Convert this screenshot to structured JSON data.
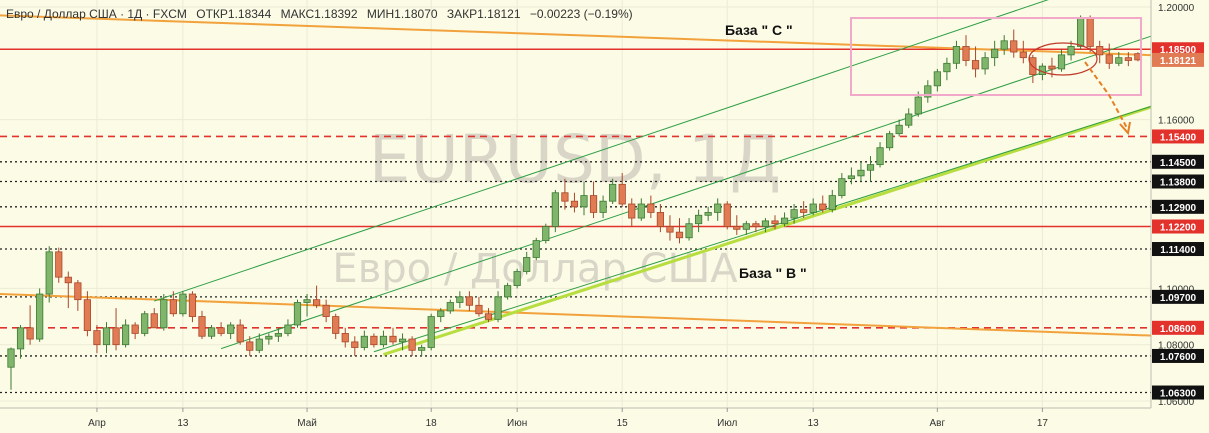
{
  "header": {
    "symbol": "Евро / Доллар США · 1Д · FXCM",
    "open": "ОТКР1.18344",
    "high": "МАКС1.18392",
    "low": "МИН1.18070",
    "close": "ЗАКР1.18121",
    "change": "−0.00223 (−0.19%)"
  },
  "watermark": {
    "ticker": "EURUSD, 1Д",
    "name": "Евро / Доллар США"
  },
  "annotations": {
    "base_c": "База  \" С \"",
    "base_b": "База  \" В \""
  },
  "colors": {
    "background": "#fbfbe6",
    "bull": "#7fb66b",
    "bear": "#e07b53",
    "red_level": "#e3312c",
    "orange_line": "#f2a23c",
    "lime_line": "#b7dd3f",
    "channel": "#2e9e45",
    "box": "#f2a9c9",
    "price_tag_bg": "#111111",
    "red_tag_bg": "#e3312c"
  },
  "chart_data": {
    "type": "candlestick",
    "title": "Евро / Доллар США · 1Д · FXCM",
    "ylim": [
      1.0575,
      1.2025
    ],
    "y_ticks": [
      "1.20000",
      "1.16000",
      "1.10000",
      "1.08000",
      "1.06000"
    ],
    "x_labels": [
      "Апр",
      "13",
      "Май",
      "18",
      "Июн",
      "15",
      "Июл",
      "13",
      "Авг",
      "17"
    ],
    "x_label_days": [
      9,
      18,
      31,
      44,
      53,
      64,
      75,
      84,
      97,
      108
    ],
    "levels": [
      {
        "price": 1.185,
        "label": "1.18500",
        "style": "solid-red"
      },
      {
        "price": 1.154,
        "label": "1.15400",
        "style": "dashed-red"
      },
      {
        "price": 1.145,
        "label": "1.14500",
        "style": "dotted"
      },
      {
        "price": 1.138,
        "label": "1.13800",
        "style": "dotted"
      },
      {
        "price": 1.129,
        "label": "1.12900",
        "style": "dotted"
      },
      {
        "price": 1.122,
        "label": "1.12200",
        "style": "solid-red"
      },
      {
        "price": 1.114,
        "label": "1.11400",
        "style": "dotted"
      },
      {
        "price": 1.097,
        "label": "1.09700",
        "style": "dotted"
      },
      {
        "price": 1.086,
        "label": "1.08600",
        "style": "dashed-red"
      },
      {
        "price": 1.076,
        "label": "1.07600",
        "style": "dotted"
      },
      {
        "price": 1.063,
        "label": "1.06300",
        "style": "dotted"
      }
    ],
    "current_price": {
      "price": 1.18121,
      "label": "1.18121"
    },
    "trendlines": [
      {
        "name": "orange-upper",
        "color": "orange",
        "points": [
          [
            -5,
            1.1975
          ],
          [
            140,
            1.1805
          ]
        ]
      },
      {
        "name": "orange-lower",
        "color": "orange",
        "points": [
          [
            -5,
            1.0985
          ],
          [
            140,
            1.0807
          ]
        ]
      },
      {
        "name": "lime-support",
        "color": "lime",
        "points": [
          [
            39,
            1.0765
          ],
          [
            124,
            1.1695
          ]
        ]
      },
      {
        "name": "channel-top",
        "color": "green",
        "points": [
          [
            15,
            1.0955
          ],
          [
            112,
            1.2065
          ]
        ]
      },
      {
        "name": "channel-mid",
        "color": "green",
        "points": [
          [
            22,
            1.0786
          ],
          [
            121,
            1.1915
          ]
        ]
      },
      {
        "name": "channel-bottom",
        "color": "green",
        "points": [
          [
            38,
            1.0775
          ],
          [
            122,
            1.1675
          ]
        ]
      }
    ],
    "candles": [
      {
        "o": 1.072,
        "h": 1.079,
        "l": 1.064,
        "c": 1.0785
      },
      {
        "o": 1.0785,
        "h": 1.087,
        "l": 1.075,
        "c": 1.086
      },
      {
        "o": 1.086,
        "h": 1.094,
        "l": 1.08,
        "c": 1.082
      },
      {
        "o": 1.082,
        "h": 1.1,
        "l": 1.081,
        "c": 1.098
      },
      {
        "o": 1.098,
        "h": 1.115,
        "l": 1.095,
        "c": 1.113
      },
      {
        "o": 1.113,
        "h": 1.1145,
        "l": 1.102,
        "c": 1.104
      },
      {
        "o": 1.104,
        "h": 1.106,
        "l": 1.093,
        "c": 1.102
      },
      {
        "o": 1.102,
        "h": 1.103,
        "l": 1.092,
        "c": 1.096
      },
      {
        "o": 1.096,
        "h": 1.099,
        "l": 1.083,
        "c": 1.085
      },
      {
        "o": 1.085,
        "h": 1.087,
        "l": 1.077,
        "c": 1.08
      },
      {
        "o": 1.08,
        "h": 1.088,
        "l": 1.077,
        "c": 1.086
      },
      {
        "o": 1.086,
        "h": 1.093,
        "l": 1.078,
        "c": 1.08
      },
      {
        "o": 1.08,
        "h": 1.089,
        "l": 1.079,
        "c": 1.087
      },
      {
        "o": 1.087,
        "h": 1.088,
        "l": 1.082,
        "c": 1.084
      },
      {
        "o": 1.084,
        "h": 1.092,
        "l": 1.083,
        "c": 1.091
      },
      {
        "o": 1.091,
        "h": 1.093,
        "l": 1.086,
        "c": 1.086
      },
      {
        "o": 1.086,
        "h": 1.098,
        "l": 1.085,
        "c": 1.096
      },
      {
        "o": 1.096,
        "h": 1.099,
        "l": 1.09,
        "c": 1.091
      },
      {
        "o": 1.091,
        "h": 1.099,
        "l": 1.09,
        "c": 1.098
      },
      {
        "o": 1.098,
        "h": 1.099,
        "l": 1.088,
        "c": 1.09
      },
      {
        "o": 1.09,
        "h": 1.092,
        "l": 1.082,
        "c": 1.083
      },
      {
        "o": 1.083,
        "h": 1.087,
        "l": 1.082,
        "c": 1.086
      },
      {
        "o": 1.086,
        "h": 1.088,
        "l": 1.083,
        "c": 1.084
      },
      {
        "o": 1.084,
        "h": 1.088,
        "l": 1.082,
        "c": 1.087
      },
      {
        "o": 1.087,
        "h": 1.089,
        "l": 1.08,
        "c": 1.081
      },
      {
        "o": 1.081,
        "h": 1.083,
        "l": 1.076,
        "c": 1.078
      },
      {
        "o": 1.078,
        "h": 1.084,
        "l": 1.077,
        "c": 1.082
      },
      {
        "o": 1.082,
        "h": 1.084,
        "l": 1.08,
        "c": 1.083
      },
      {
        "o": 1.083,
        "h": 1.086,
        "l": 1.081,
        "c": 1.084
      },
      {
        "o": 1.084,
        "h": 1.089,
        "l": 1.083,
        "c": 1.087
      },
      {
        "o": 1.087,
        "h": 1.096,
        "l": 1.086,
        "c": 1.095
      },
      {
        "o": 1.095,
        "h": 1.098,
        "l": 1.09,
        "c": 1.096
      },
      {
        "o": 1.096,
        "h": 1.101,
        "l": 1.093,
        "c": 1.094
      },
      {
        "o": 1.094,
        "h": 1.096,
        "l": 1.088,
        "c": 1.09
      },
      {
        "o": 1.09,
        "h": 1.091,
        "l": 1.082,
        "c": 1.084
      },
      {
        "o": 1.084,
        "h": 1.086,
        "l": 1.079,
        "c": 1.081
      },
      {
        "o": 1.081,
        "h": 1.083,
        "l": 1.076,
        "c": 1.079
      },
      {
        "o": 1.079,
        "h": 1.085,
        "l": 1.078,
        "c": 1.083
      },
      {
        "o": 1.083,
        "h": 1.084,
        "l": 1.079,
        "c": 1.08
      },
      {
        "o": 1.08,
        "h": 1.085,
        "l": 1.079,
        "c": 1.083
      },
      {
        "o": 1.083,
        "h": 1.086,
        "l": 1.08,
        "c": 1.081
      },
      {
        "o": 1.081,
        "h": 1.084,
        "l": 1.078,
        "c": 1.082
      },
      {
        "o": 1.082,
        "h": 1.083,
        "l": 1.076,
        "c": 1.078
      },
      {
        "o": 1.078,
        "h": 1.08,
        "l": 1.076,
        "c": 1.079
      },
      {
        "o": 1.079,
        "h": 1.091,
        "l": 1.078,
        "c": 1.09
      },
      {
        "o": 1.09,
        "h": 1.093,
        "l": 1.088,
        "c": 1.092
      },
      {
        "o": 1.092,
        "h": 1.096,
        "l": 1.091,
        "c": 1.095
      },
      {
        "o": 1.095,
        "h": 1.099,
        "l": 1.093,
        "c": 1.097
      },
      {
        "o": 1.097,
        "h": 1.099,
        "l": 1.092,
        "c": 1.094
      },
      {
        "o": 1.094,
        "h": 1.097,
        "l": 1.09,
        "c": 1.091
      },
      {
        "o": 1.091,
        "h": 1.093,
        "l": 1.088,
        "c": 1.089
      },
      {
        "o": 1.089,
        "h": 1.099,
        "l": 1.088,
        "c": 1.097
      },
      {
        "o": 1.097,
        "h": 1.102,
        "l": 1.096,
        "c": 1.101
      },
      {
        "o": 1.101,
        "h": 1.107,
        "l": 1.1,
        "c": 1.106
      },
      {
        "o": 1.106,
        "h": 1.113,
        "l": 1.105,
        "c": 1.111
      },
      {
        "o": 1.111,
        "h": 1.118,
        "l": 1.11,
        "c": 1.117
      },
      {
        "o": 1.117,
        "h": 1.123,
        "l": 1.116,
        "c": 1.122
      },
      {
        "o": 1.122,
        "h": 1.135,
        "l": 1.12,
        "c": 1.134
      },
      {
        "o": 1.134,
        "h": 1.139,
        "l": 1.128,
        "c": 1.131
      },
      {
        "o": 1.131,
        "h": 1.134,
        "l": 1.127,
        "c": 1.129
      },
      {
        "o": 1.129,
        "h": 1.138,
        "l": 1.126,
        "c": 1.133
      },
      {
        "o": 1.133,
        "h": 1.138,
        "l": 1.125,
        "c": 1.127
      },
      {
        "o": 1.127,
        "h": 1.133,
        "l": 1.125,
        "c": 1.131
      },
      {
        "o": 1.131,
        "h": 1.139,
        "l": 1.13,
        "c": 1.137
      },
      {
        "o": 1.137,
        "h": 1.141,
        "l": 1.129,
        "c": 1.13
      },
      {
        "o": 1.13,
        "h": 1.132,
        "l": 1.122,
        "c": 1.125
      },
      {
        "o": 1.125,
        "h": 1.132,
        "l": 1.124,
        "c": 1.13
      },
      {
        "o": 1.13,
        "h": 1.133,
        "l": 1.125,
        "c": 1.127
      },
      {
        "o": 1.127,
        "h": 1.13,
        "l": 1.12,
        "c": 1.122
      },
      {
        "o": 1.122,
        "h": 1.126,
        "l": 1.117,
        "c": 1.12
      },
      {
        "o": 1.12,
        "h": 1.125,
        "l": 1.116,
        "c": 1.118
      },
      {
        "o": 1.118,
        "h": 1.125,
        "l": 1.117,
        "c": 1.123
      },
      {
        "o": 1.123,
        "h": 1.128,
        "l": 1.12,
        "c": 1.126
      },
      {
        "o": 1.126,
        "h": 1.129,
        "l": 1.124,
        "c": 1.127
      },
      {
        "o": 1.127,
        "h": 1.132,
        "l": 1.124,
        "c": 1.13
      },
      {
        "o": 1.13,
        "h": 1.131,
        "l": 1.121,
        "c": 1.122
      },
      {
        "o": 1.122,
        "h": 1.126,
        "l": 1.119,
        "c": 1.121
      },
      {
        "o": 1.121,
        "h": 1.124,
        "l": 1.119,
        "c": 1.123
      },
      {
        "o": 1.123,
        "h": 1.124,
        "l": 1.12,
        "c": 1.122
      },
      {
        "o": 1.122,
        "h": 1.125,
        "l": 1.12,
        "c": 1.124
      },
      {
        "o": 1.124,
        "h": 1.126,
        "l": 1.121,
        "c": 1.123
      },
      {
        "o": 1.123,
        "h": 1.127,
        "l": 1.122,
        "c": 1.125
      },
      {
        "o": 1.125,
        "h": 1.13,
        "l": 1.123,
        "c": 1.128
      },
      {
        "o": 1.128,
        "h": 1.131,
        "l": 1.125,
        "c": 1.127
      },
      {
        "o": 1.127,
        "h": 1.132,
        "l": 1.126,
        "c": 1.13
      },
      {
        "o": 1.13,
        "h": 1.133,
        "l": 1.127,
        "c": 1.128
      },
      {
        "o": 1.128,
        "h": 1.135,
        "l": 1.127,
        "c": 1.133
      },
      {
        "o": 1.133,
        "h": 1.141,
        "l": 1.132,
        "c": 1.139
      },
      {
        "o": 1.139,
        "h": 1.143,
        "l": 1.137,
        "c": 1.14
      },
      {
        "o": 1.14,
        "h": 1.145,
        "l": 1.138,
        "c": 1.142
      },
      {
        "o": 1.142,
        "h": 1.147,
        "l": 1.138,
        "c": 1.144
      },
      {
        "o": 1.144,
        "h": 1.152,
        "l": 1.143,
        "c": 1.15
      },
      {
        "o": 1.15,
        "h": 1.156,
        "l": 1.149,
        "c": 1.155
      },
      {
        "o": 1.155,
        "h": 1.16,
        "l": 1.154,
        "c": 1.158
      },
      {
        "o": 1.158,
        "h": 1.164,
        "l": 1.157,
        "c": 1.162
      },
      {
        "o": 1.162,
        "h": 1.17,
        "l": 1.161,
        "c": 1.168
      },
      {
        "o": 1.168,
        "h": 1.174,
        "l": 1.166,
        "c": 1.172
      },
      {
        "o": 1.172,
        "h": 1.178,
        "l": 1.17,
        "c": 1.177
      },
      {
        "o": 1.177,
        "h": 1.182,
        "l": 1.174,
        "c": 1.18
      },
      {
        "o": 1.18,
        "h": 1.188,
        "l": 1.178,
        "c": 1.186
      },
      {
        "o": 1.186,
        "h": 1.19,
        "l": 1.179,
        "c": 1.181
      },
      {
        "o": 1.181,
        "h": 1.186,
        "l": 1.175,
        "c": 1.178
      },
      {
        "o": 1.178,
        "h": 1.184,
        "l": 1.176,
        "c": 1.182
      },
      {
        "o": 1.182,
        "h": 1.188,
        "l": 1.179,
        "c": 1.185
      },
      {
        "o": 1.185,
        "h": 1.19,
        "l": 1.183,
        "c": 1.188
      },
      {
        "o": 1.188,
        "h": 1.192,
        "l": 1.182,
        "c": 1.184
      },
      {
        "o": 1.184,
        "h": 1.188,
        "l": 1.18,
        "c": 1.182
      },
      {
        "o": 1.182,
        "h": 1.183,
        "l": 1.173,
        "c": 1.176
      },
      {
        "o": 1.176,
        "h": 1.18,
        "l": 1.174,
        "c": 1.179
      },
      {
        "o": 1.179,
        "h": 1.182,
        "l": 1.175,
        "c": 1.178
      },
      {
        "o": 1.178,
        "h": 1.185,
        "l": 1.177,
        "c": 1.183
      },
      {
        "o": 1.183,
        "h": 1.188,
        "l": 1.181,
        "c": 1.186
      },
      {
        "o": 1.186,
        "h": 1.197,
        "l": 1.185,
        "c": 1.196
      },
      {
        "o": 1.196,
        "h": 1.197,
        "l": 1.184,
        "c": 1.186
      },
      {
        "o": 1.186,
        "h": 1.188,
        "l": 1.18,
        "c": 1.183
      },
      {
        "o": 1.183,
        "h": 1.187,
        "l": 1.178,
        "c": 1.18
      },
      {
        "o": 1.18,
        "h": 1.184,
        "l": 1.179,
        "c": 1.182
      },
      {
        "o": 1.182,
        "h": 1.184,
        "l": 1.179,
        "c": 1.181
      },
      {
        "o": 1.18344,
        "h": 1.18392,
        "l": 1.1807,
        "c": 1.18121
      }
    ]
  }
}
